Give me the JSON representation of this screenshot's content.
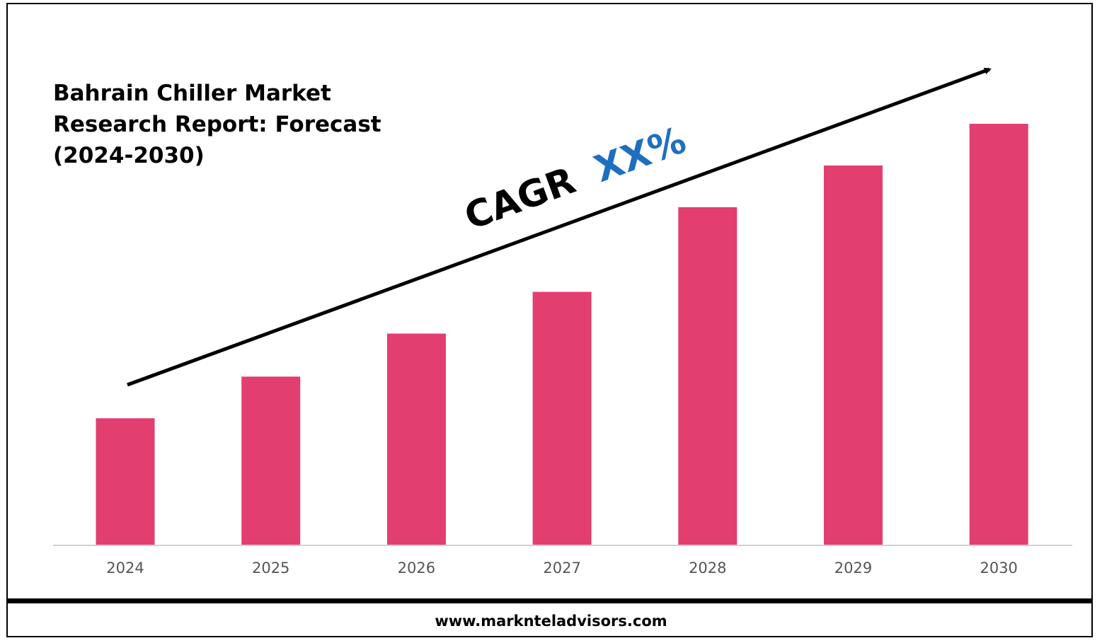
{
  "chart_data": {
    "type": "bar",
    "title": "Bahrain Chiller Market Research Report: Forecast (2024-2030)",
    "categories": [
      "2024",
      "2025",
      "2026",
      "2027",
      "2028",
      "2029",
      "2030"
    ],
    "values": [
      1.0,
      1.33,
      1.67,
      2.0,
      2.67,
      3.0,
      3.33
    ],
    "xlabel": "",
    "ylabel": "",
    "ylim": [
      0,
      3.33
    ],
    "grid": false,
    "legend": "none",
    "annotations": {
      "cagr_prefix": "CAGR",
      "cagr_value": "XX%"
    },
    "colors": {
      "bar": "#E23E6F",
      "cagr_value": "#1F6FC0",
      "arrow": "#000000",
      "baseline": "#D0D0D0"
    }
  },
  "footer": {
    "website": "www.marknteladvisors.com"
  }
}
